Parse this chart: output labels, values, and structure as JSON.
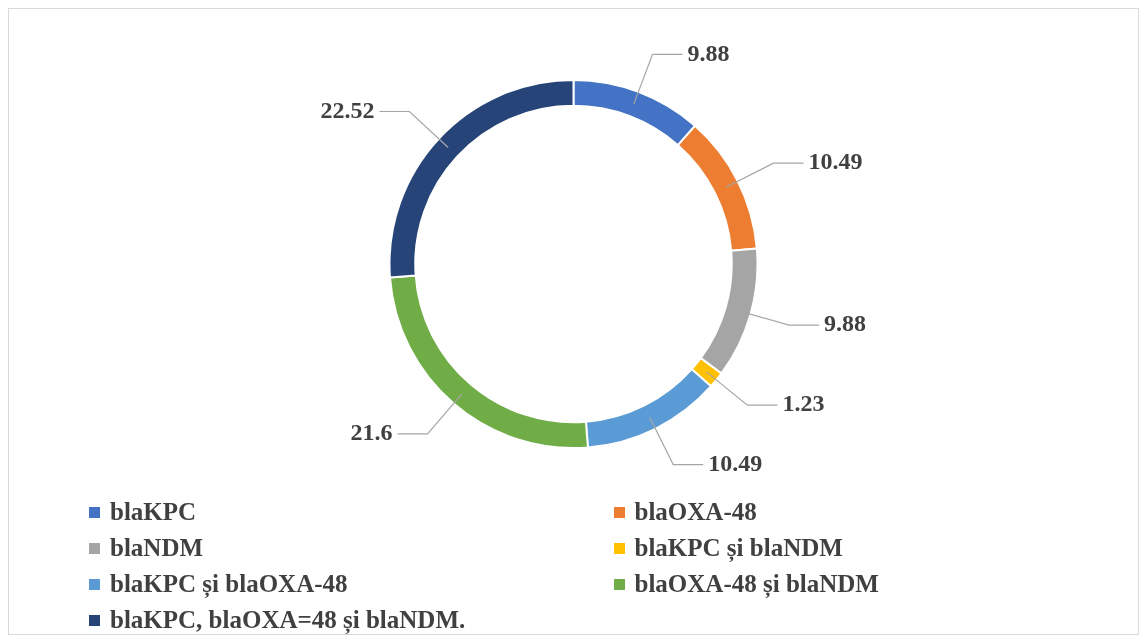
{
  "chart_data": {
    "type": "donut",
    "categories": [
      "blaKPC",
      "blaOXA-48",
      "blaNDM",
      "blaKPC și blaNDM",
      "blaKPC și blaOXA-48",
      "blaOXA-48 și blaNDM",
      "blaKPC, blaOXA=48 și blaNDM."
    ],
    "values": [
      9.88,
      10.49,
      9.88,
      1.23,
      10.49,
      21.6,
      22.52
    ],
    "colors": [
      "#4472c4",
      "#ed7d31",
      "#a5a5a5",
      "#ffc000",
      "#5b9bd5",
      "#70ad47",
      "#264478"
    ],
    "data_labels": true,
    "legend": "bottom"
  }
}
